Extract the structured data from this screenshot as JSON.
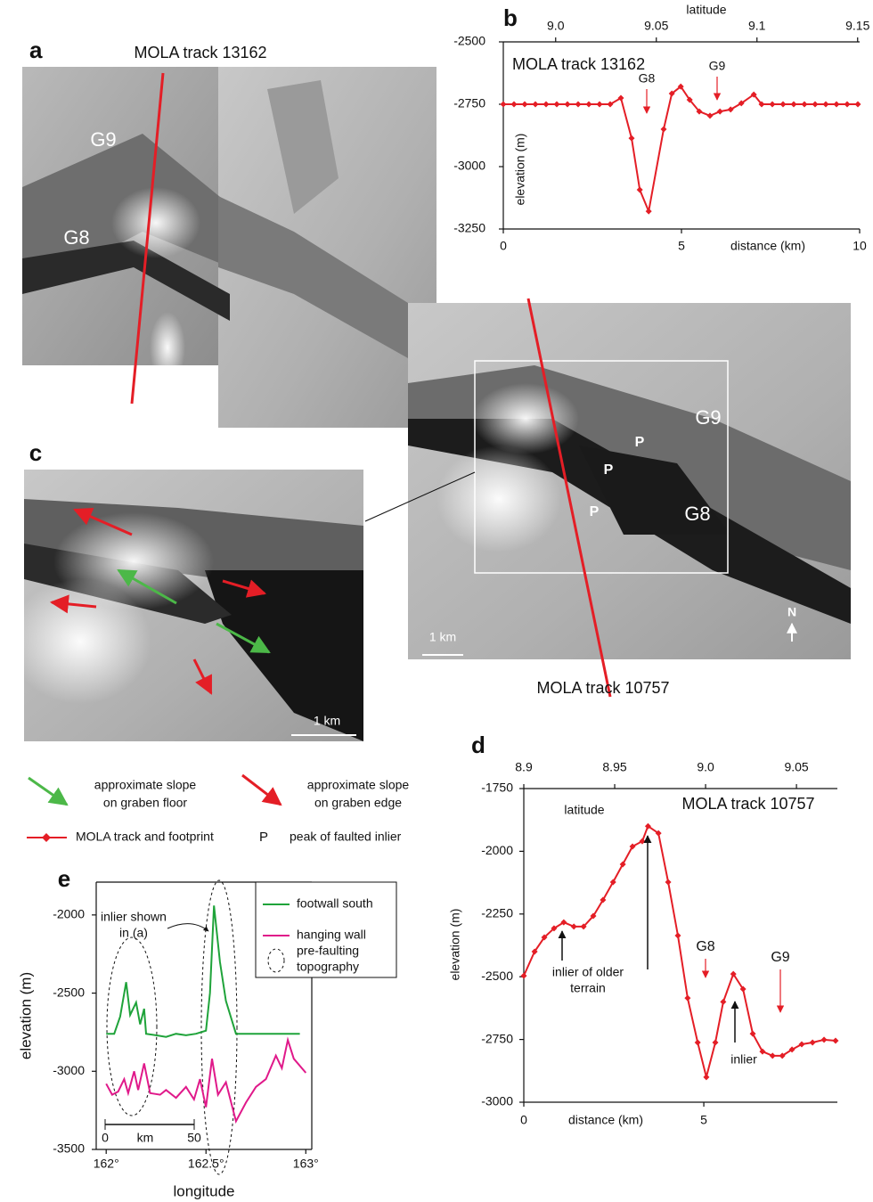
{
  "panel_a": {
    "label": "a",
    "track": "MOLA track 13162",
    "features": [
      "G9",
      "G8"
    ]
  },
  "panel_main": {
    "features": [
      "G9",
      "G8"
    ],
    "peaks": [
      "P",
      "P",
      "P"
    ],
    "scale": "1 km",
    "north": "N",
    "track": "MOLA track 10757"
  },
  "panel_c": {
    "label": "c",
    "scale": "1 km"
  },
  "legend": {
    "floor_slope": [
      "approximate slope",
      "on graben floor"
    ],
    "edge_slope": [
      "approximate slope",
      "on graben edge"
    ],
    "track": "MOLA track and footprint",
    "peak_symbol": "P",
    "peak": "peak of faulted inlier"
  },
  "chart_data": [
    {
      "type": "line",
      "label": "b",
      "title": "MOLA track 13162",
      "xlabel": "distance (km)",
      "ylabel": "elevation (m)",
      "x2label": "latitude",
      "x": [
        0,
        0.3,
        0.6,
        0.9,
        1.2,
        1.5,
        1.8,
        2.1,
        2.4,
        2.7,
        3.0,
        3.3,
        3.6,
        3.83,
        4.08,
        4.5,
        4.73,
        4.98,
        5.23,
        5.5,
        5.8,
        6.08,
        6.38,
        6.68,
        7.03,
        7.25,
        7.55,
        7.85,
        8.15,
        8.45,
        8.75,
        9.05,
        9.35,
        9.65,
        9.95
      ],
      "values": [
        -2750,
        -2750,
        -2750,
        -2750,
        -2750,
        -2750,
        -2750,
        -2750,
        -2750,
        -2750,
        -2750,
        -2725,
        -2886,
        -3093,
        -3179,
        -2850,
        -2707,
        -2679,
        -2732,
        -2779,
        -2796,
        -2779,
        -2771,
        -2746,
        -2711,
        -2750,
        -2750,
        -2750,
        -2750,
        -2750,
        -2750,
        -2750,
        -2750,
        -2750,
        -2750
      ],
      "color": "#e41e26",
      "marker": "diamond",
      "xlim": [
        0,
        10
      ],
      "xticks": [
        0,
        5,
        10
      ],
      "ylim": [
        -3250,
        -2500
      ],
      "yticks": [
        -3250,
        -3000,
        -2750,
        -2500
      ],
      "x2lim": [
        8.974,
        9.151
      ],
      "x2ticks": [
        {
          "value": 9.0,
          "label": "9.0"
        },
        9.05,
        9.1,
        9.15
      ],
      "annotations": [
        "G8",
        "G9"
      ]
    },
    {
      "type": "line",
      "label": "d",
      "title": "MOLA track 10757",
      "xlabel": "distance (km)",
      "ylabel": "elevation (m)",
      "x2label": "latitude",
      "x": [
        0,
        0.3,
        0.57,
        0.84,
        1.11,
        1.39,
        1.66,
        1.93,
        2.2,
        2.48,
        2.75,
        3.02,
        3.29,
        3.45,
        3.74,
        4.01,
        4.28,
        4.55,
        4.83,
        5.07,
        5.32,
        5.54,
        5.82,
        6.09,
        6.36,
        6.63,
        6.91,
        7.18,
        7.45,
        7.72,
        8.02,
        8.34,
        8.66
      ],
      "values": [
        -2496,
        -2400,
        -2343,
        -2307,
        -2283,
        -2300,
        -2300,
        -2258,
        -2194,
        -2123,
        -2052,
        -1981,
        -1960,
        -1900,
        -1928,
        -2123,
        -2336,
        -2585,
        -2762,
        -2900,
        -2762,
        -2600,
        -2489,
        -2549,
        -2727,
        -2798,
        -2815,
        -2815,
        -2790,
        -2769,
        -2762,
        -2751,
        -2755
      ],
      "color": "#e41e26",
      "marker": "diamond",
      "xlim": [
        0,
        8.71
      ],
      "xticks": [
        0,
        5
      ],
      "ylim": [
        -3000,
        -1750
      ],
      "yticks": [
        -3000,
        -2750,
        -2500,
        -2250,
        -2000,
        -1750
      ],
      "x2lim": [
        8.9,
        9.0725
      ],
      "x2ticks": [
        8.9,
        8.95,
        {
          "value": 9.0,
          "label": "9.0"
        },
        9.05
      ],
      "annotations": [
        [
          "inlier of older",
          "terrain"
        ],
        "inlier",
        "G8",
        "G9"
      ]
    },
    {
      "type": "line",
      "label": "e",
      "xlabel": "longitude",
      "ylabel": "elevation (m)",
      "series": [
        {
          "name": "footwall south",
          "color": "#1fa33a",
          "x": [
            162.0,
            162.04,
            162.07,
            162.1,
            162.12,
            162.15,
            162.17,
            162.19,
            162.2,
            162.25,
            162.3,
            162.35,
            162.4,
            162.45,
            162.5,
            162.52,
            162.54,
            162.57,
            162.6,
            162.65,
            162.8,
            162.97
          ],
          "values": [
            -2760,
            -2760,
            -2650,
            -2430,
            -2640,
            -2560,
            -2700,
            -2600,
            -2760,
            -2770,
            -2780,
            -2760,
            -2770,
            -2760,
            -2740,
            -2500,
            -1940,
            -2300,
            -2550,
            -2760,
            -2760,
            -2760
          ]
        },
        {
          "name": "hanging wall",
          "color": "#e0198a",
          "x": [
            162.0,
            162.03,
            162.06,
            162.09,
            162.11,
            162.14,
            162.16,
            162.19,
            162.22,
            162.27,
            162.3,
            162.35,
            162.4,
            162.44,
            162.47,
            162.5,
            162.53,
            162.56,
            162.6,
            162.65,
            162.7,
            162.75,
            162.8,
            162.85,
            162.88,
            162.91,
            162.94,
            163.0
          ],
          "values": [
            -3080,
            -3150,
            -3130,
            -3050,
            -3140,
            -3000,
            -3120,
            -2950,
            -3140,
            -3150,
            -3120,
            -3170,
            -3100,
            -3180,
            -3050,
            -3230,
            -2920,
            -3150,
            -3070,
            -3320,
            -3200,
            -3100,
            -3050,
            -2900,
            -2980,
            -2800,
            -2920,
            -3010
          ]
        }
      ],
      "xlim": [
        161.95,
        163.03
      ],
      "xticks": [
        {
          "value": 162,
          "label": "162°"
        },
        {
          "value": 162.5,
          "label": "162.5°"
        },
        {
          "value": 163,
          "label": "163°"
        }
      ],
      "ylim": [
        -3500,
        -1790
      ],
      "yticks": [
        -3500,
        -3000,
        -2500,
        -2000
      ],
      "ellipse_legend": [
        "pre-faulting",
        "topography"
      ],
      "annotations": [
        [
          "inlier shown",
          "in (a)"
        ]
      ],
      "scale_bar": [
        0,
        50
      ],
      "scale_unit": "km"
    }
  ]
}
